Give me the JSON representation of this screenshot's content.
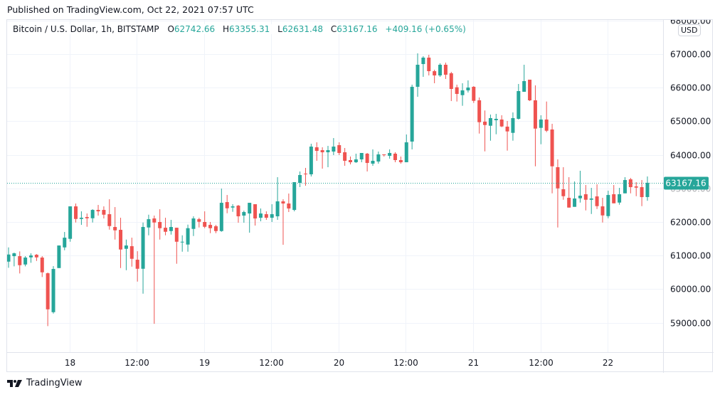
{
  "header": {
    "published": "Published on TradingView.com, Oct 22, 2021 07:57 UTC"
  },
  "legend": {
    "symbol": "Bitcoin / U.S. Dollar, 1h, BITSTAMP",
    "o_label": "O",
    "o": "62742.66",
    "h_label": "H",
    "h": "63355.31",
    "l_label": "L",
    "l": "62631.48",
    "c_label": "C",
    "c": "63167.16",
    "change": "+409.16 (+0.65%)"
  },
  "currency_button": "USD",
  "footer": {
    "brand": "TradingView"
  },
  "colors": {
    "up": "#26a69a",
    "down": "#ef5350",
    "grid": "#f0f3fa",
    "price_line": "#26a69a"
  },
  "chart_data": {
    "type": "candlestick",
    "title": "Bitcoin / U.S. Dollar, 1h, BITSTAMP",
    "interval": "1h",
    "ylim": [
      58300,
      68900
    ],
    "y_ticks": [
      68000,
      67000,
      66000,
      65000,
      64000,
      63000,
      62000,
      61000,
      60000,
      59000
    ],
    "y_tick_labels": [
      "68000.00",
      "67000.00",
      "66000.00",
      "65000.00",
      "64000.00",
      "63000.00",
      "62000.00",
      "61000.00",
      "60000.00",
      "59000.00"
    ],
    "x_ticks": [
      {
        "label": "18",
        "index": 10.9
      },
      {
        "label": "12:00",
        "index": 22.9
      },
      {
        "label": "19",
        "index": 34.9
      },
      {
        "label": "12:00",
        "index": 46.9
      },
      {
        "label": "20",
        "index": 58.9
      },
      {
        "label": "12:00",
        "index": 70.9
      },
      {
        "label": "21",
        "index": 82.9
      },
      {
        "label": "12:00",
        "index": 94.9
      },
      {
        "label": "22",
        "index": 106.9
      }
    ],
    "last_price": 63167.16,
    "last_price_label": "63167.16",
    "grid": true,
    "ohlc_fields": [
      "open",
      "high",
      "low",
      "close"
    ],
    "candles": [
      [
        60819,
        61243,
        60635,
        61031
      ],
      [
        60982,
        61088,
        60679,
        61067
      ],
      [
        60982,
        61124,
        60467,
        60713
      ],
      [
        60734,
        60982,
        60679,
        60940
      ],
      [
        60946,
        61067,
        60785,
        61003
      ],
      [
        61024,
        61045,
        60840,
        60946
      ],
      [
        60940,
        60982,
        60361,
        60501
      ],
      [
        60473,
        60495,
        58899,
        59399
      ],
      [
        59314,
        60685,
        59272,
        60601
      ],
      [
        60628,
        61300,
        60628,
        61300
      ],
      [
        61243,
        61703,
        61158,
        61533
      ],
      [
        61498,
        62465,
        61412,
        62465
      ],
      [
        62465,
        62550,
        61984,
        62090
      ],
      [
        62090,
        62317,
        61914,
        62126
      ],
      [
        62147,
        62253,
        61857,
        62111
      ],
      [
        62111,
        62380,
        61984,
        62359
      ],
      [
        62359,
        62508,
        62190,
        62317
      ],
      [
        62359,
        62465,
        62105,
        62217
      ],
      [
        62232,
        62677,
        61772,
        61878
      ],
      [
        61851,
        62444,
        61476,
        61751
      ],
      [
        61766,
        62126,
        60628,
        61180
      ],
      [
        61201,
        61476,
        60564,
        61300
      ],
      [
        61279,
        61533,
        60670,
        60904
      ],
      [
        60876,
        61130,
        60225,
        60607
      ],
      [
        60607,
        61984,
        59865,
        61851
      ],
      [
        61836,
        62217,
        61603,
        62083
      ],
      [
        62105,
        62190,
        58969,
        61984
      ],
      [
        62000,
        62380,
        61476,
        61815
      ],
      [
        61829,
        62126,
        61603,
        61709
      ],
      [
        61730,
        62063,
        61624,
        61851
      ],
      [
        61829,
        61829,
        60756,
        61412
      ],
      [
        61391,
        61603,
        61115,
        61412
      ],
      [
        61328,
        61921,
        61115,
        61815
      ],
      [
        61794,
        62168,
        61582,
        62105
      ],
      [
        62083,
        62126,
        61836,
        62006
      ],
      [
        62000,
        62317,
        61815,
        61857
      ],
      [
        61914,
        62000,
        61667,
        61815
      ],
      [
        61872,
        61914,
        61667,
        61730
      ],
      [
        61730,
        62995,
        61709,
        62571
      ],
      [
        62592,
        62804,
        62260,
        62408
      ],
      [
        62430,
        62529,
        62303,
        62465
      ],
      [
        62486,
        62508,
        61978,
        62169
      ],
      [
        62190,
        62338,
        61978,
        62296
      ],
      [
        62253,
        62571,
        61681,
        62571
      ],
      [
        62529,
        62529,
        61893,
        62105
      ],
      [
        62126,
        62402,
        62020,
        62253
      ],
      [
        62232,
        62317,
        62063,
        62126
      ],
      [
        62126,
        62529,
        62000,
        62232
      ],
      [
        62169,
        63334,
        62063,
        62614
      ],
      [
        62614,
        62677,
        61321,
        62550
      ],
      [
        62550,
        62847,
        62296,
        62402
      ],
      [
        62359,
        63186,
        62317,
        63186
      ],
      [
        63165,
        63504,
        63038,
        63398
      ],
      [
        63440,
        63610,
        63080,
        63419
      ],
      [
        63419,
        64330,
        63355,
        64245
      ],
      [
        64224,
        64372,
        63822,
        64118
      ],
      [
        64139,
        64224,
        63588,
        64076
      ],
      [
        64076,
        64266,
        63631,
        64139
      ],
      [
        64097,
        64499,
        63991,
        64245
      ],
      [
        64288,
        64372,
        63991,
        64055
      ],
      [
        64076,
        64203,
        63673,
        63822
      ],
      [
        63843,
        63949,
        63715,
        63779
      ],
      [
        63779,
        64034,
        63758,
        63864
      ],
      [
        63864,
        64055,
        63779,
        64055
      ],
      [
        64034,
        64055,
        63504,
        63758
      ],
      [
        63737,
        64161,
        63673,
        63822
      ],
      [
        63800,
        64097,
        63737,
        64012
      ],
      [
        64012,
        64012,
        63949,
        63998
      ],
      [
        63970,
        64161,
        63885,
        64055
      ],
      [
        64034,
        64076,
        63779,
        63843
      ],
      [
        63843,
        63949,
        63737,
        63779
      ],
      [
        63779,
        64606,
        63779,
        64372
      ],
      [
        64394,
        66089,
        64161,
        66025
      ],
      [
        66025,
        67021,
        65729,
        66682
      ],
      [
        66703,
        66936,
        66322,
        66894
      ],
      [
        66894,
        66979,
        66364,
        66491
      ],
      [
        66491,
        66534,
        66131,
        66364
      ],
      [
        66364,
        66725,
        66322,
        66682
      ],
      [
        66682,
        66746,
        66258,
        66385
      ],
      [
        66428,
        66470,
        65601,
        65962
      ],
      [
        66011,
        66089,
        65587,
        65813
      ],
      [
        65777,
        66131,
        65460,
        65919
      ],
      [
        65919,
        66216,
        65856,
        66004
      ],
      [
        66025,
        66046,
        65544,
        65608
      ],
      [
        65623,
        65707,
        64633,
        64972
      ],
      [
        64987,
        65320,
        64103,
        64887
      ],
      [
        64866,
        65199,
        64421,
        65093
      ],
      [
        65030,
        65220,
        64612,
        65072
      ],
      [
        65051,
        65178,
        64824,
        64845
      ],
      [
        64839,
        65008,
        64125,
        64697
      ],
      [
        64654,
        65263,
        64421,
        65093
      ],
      [
        65072,
        66110,
        65051,
        65898
      ],
      [
        65877,
        66682,
        65877,
        66195
      ],
      [
        66237,
        66237,
        65601,
        65623
      ],
      [
        65623,
        66068,
        63658,
        64781
      ],
      [
        64803,
        65178,
        64315,
        65051
      ],
      [
        65051,
        65587,
        64676,
        64718
      ],
      [
        64754,
        64923,
        62853,
        63658
      ],
      [
        63631,
        63864,
        61836,
        63001
      ],
      [
        62974,
        63631,
        62662,
        62768
      ],
      [
        62720,
        63334,
        62429,
        62429
      ],
      [
        62451,
        63207,
        62451,
        62699
      ],
      [
        62705,
        63525,
        62578,
        62783
      ],
      [
        62826,
        63101,
        62345,
        62662
      ],
      [
        62662,
        63016,
        62238,
        62699
      ],
      [
        62762,
        63122,
        62387,
        62472
      ],
      [
        62465,
        62720,
        61984,
        62196
      ],
      [
        62175,
        62931,
        62111,
        62804
      ],
      [
        62826,
        63101,
        62556,
        62556
      ],
      [
        62578,
        63016,
        62514,
        62826
      ],
      [
        62853,
        63334,
        62853,
        63249
      ],
      [
        63270,
        63313,
        62853,
        63037
      ],
      [
        63059,
        63186,
        62768,
        63023
      ],
      [
        63037,
        63249,
        62472,
        62741
      ],
      [
        62742.66,
        63355.31,
        62631.48,
        63167.16
      ]
    ]
  }
}
